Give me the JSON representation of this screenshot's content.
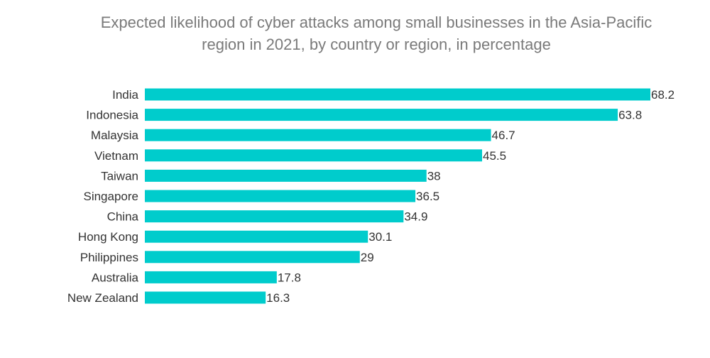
{
  "chart_data": {
    "type": "bar",
    "orientation": "horizontal",
    "title_lines": [
      "Expected likelihood of cyber attacks among small businesses in the Asia-Pacific",
      "region in 2021, by country or region, in percentage"
    ],
    "categories": [
      "India",
      "Indonesia",
      "Malaysia",
      "Vietnam",
      "Taiwan",
      "Singapore",
      "China",
      "Hong Kong",
      "Philippines",
      "Australia",
      "New Zealand"
    ],
    "values": [
      68.2,
      63.8,
      46.7,
      45.5,
      38,
      36.5,
      34.9,
      30.1,
      29,
      17.8,
      16.3
    ],
    "value_labels": [
      "68.2",
      "63.8",
      "46.7",
      "45.5",
      "38",
      "36.5",
      "34.9",
      "30.1",
      "29",
      "17.8",
      "16.3"
    ],
    "xlim": [
      0,
      68.2
    ],
    "xlabel": "",
    "ylabel": "",
    "grid": false,
    "legend": "none",
    "bar_color": "#00cccc"
  }
}
